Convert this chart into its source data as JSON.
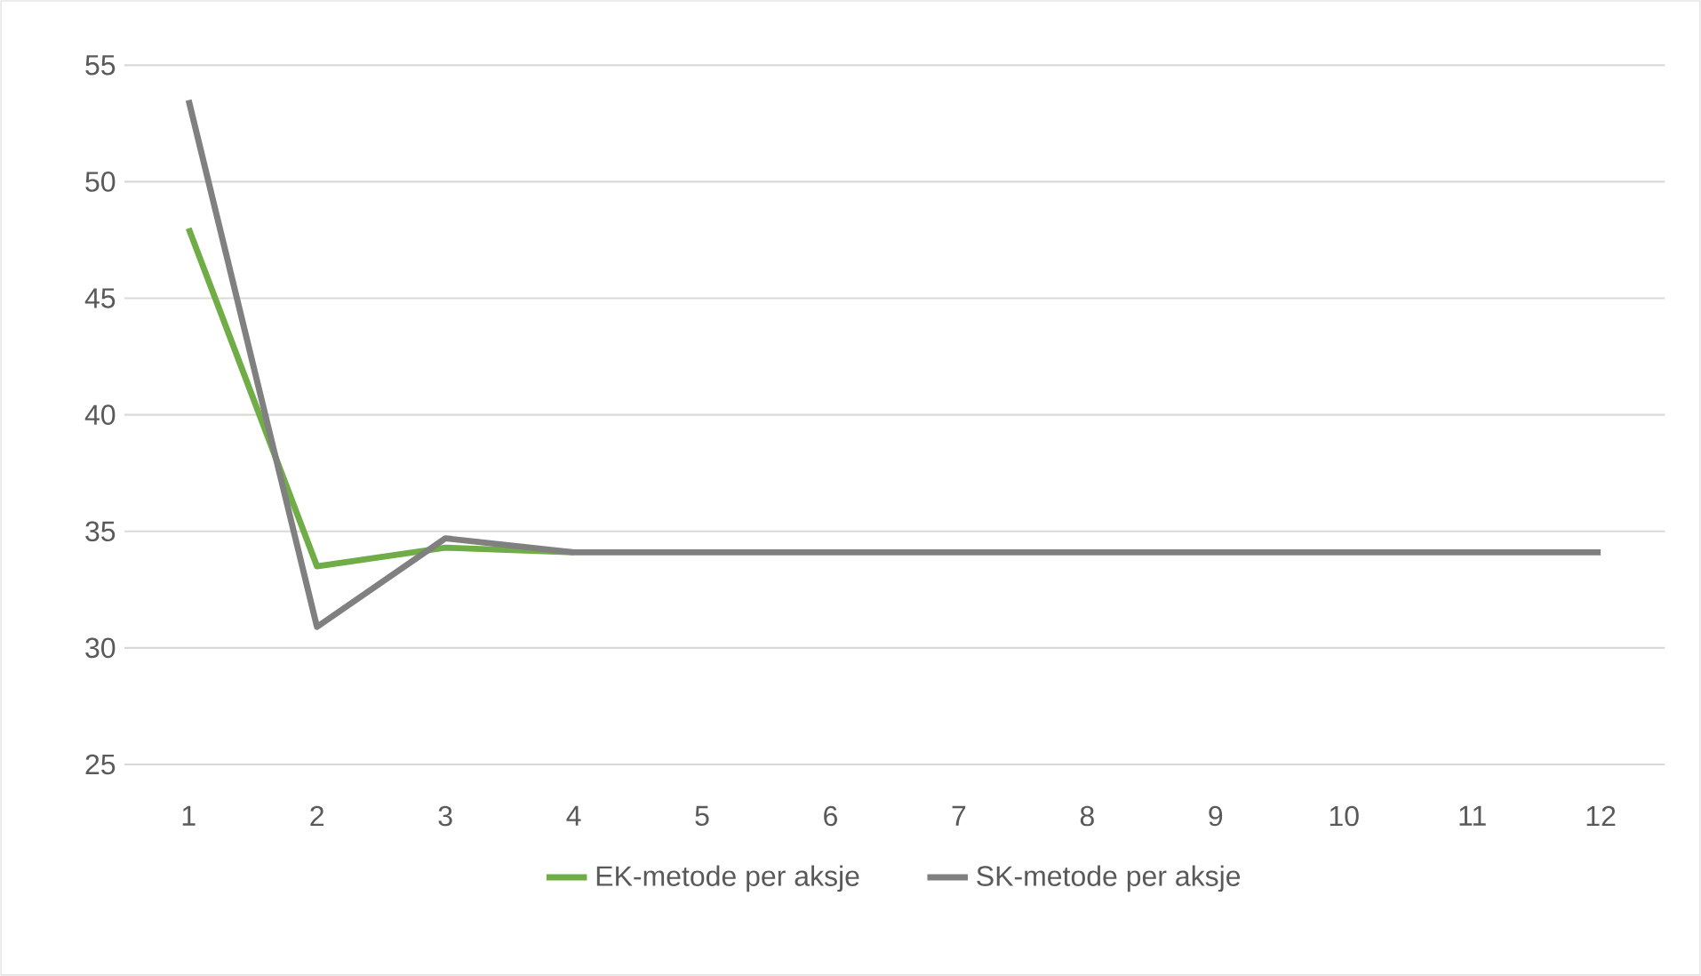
{
  "chart_data": {
    "type": "line",
    "categories": [
      "1",
      "2",
      "3",
      "4",
      "5",
      "6",
      "7",
      "8",
      "9",
      "10",
      "11",
      "12"
    ],
    "series": [
      {
        "name": "EK-metode per aksje",
        "color": "#70ad47",
        "values": [
          48.0,
          33.5,
          34.3,
          34.1,
          null,
          null,
          null,
          null,
          null,
          null,
          null,
          null
        ]
      },
      {
        "name": "SK-metode per aksje",
        "color": "#808080",
        "values": [
          53.5,
          30.9,
          34.7,
          34.1,
          34.1,
          34.1,
          34.1,
          34.1,
          34.1,
          34.1,
          34.1,
          34.1
        ]
      }
    ],
    "ylim": [
      25,
      55
    ],
    "yticks": [
      25,
      30,
      35,
      40,
      45,
      50,
      55
    ],
    "grid": "y",
    "legend": "bottom",
    "marker": "none",
    "line_style": "solid"
  }
}
